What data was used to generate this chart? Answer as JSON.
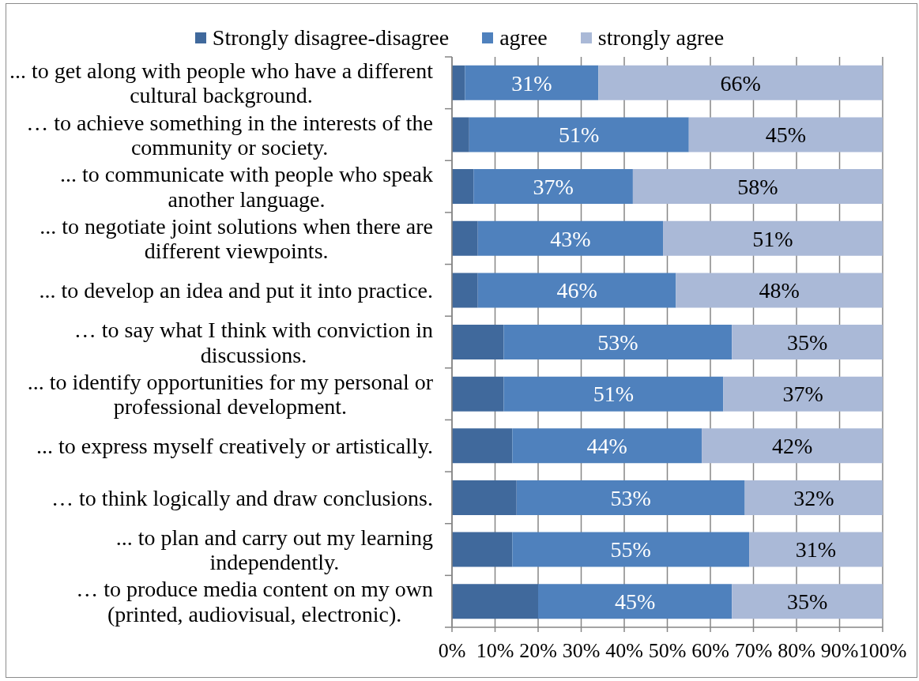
{
  "chart_data": {
    "type": "bar",
    "orientation": "horizontal",
    "stacked": true,
    "categories": [
      "... to get along with people who have a different\ncultural background.",
      "… to achieve something in the interests of the\ncommunity or society.",
      "... to communicate with people who speak\nanother language.",
      "... to negotiate joint solutions when there are\ndifferent viewpoints.",
      "... to develop an idea and put it into practice.",
      "… to say what I think with conviction in\ndiscussions.",
      "... to identify opportunities for my personal or\nprofessional development.",
      "... to express myself creatively or artistically.",
      "… to think logically and draw conclusions.",
      "... to plan and carry out my learning\nindependently.",
      "… to produce media content on my own\n(printed, audiovisual, electronic)."
    ],
    "series": [
      {
        "name": "Strongly disagree-disagree",
        "color": "#40699c",
        "values": [
          3,
          4,
          5,
          6,
          6,
          12,
          12,
          14,
          15,
          14,
          20
        ]
      },
      {
        "name": "agree",
        "color": "#4f81bd",
        "values": [
          31,
          51,
          37,
          43,
          46,
          53,
          51,
          44,
          53,
          55,
          45
        ],
        "value_labels": [
          "31%",
          "51%",
          "37%",
          "43%",
          "46%",
          "53%",
          "51%",
          "44%",
          "53%",
          "55%",
          "45%"
        ]
      },
      {
        "name": "strongly agree",
        "color": "#aab9d7",
        "values": [
          66,
          45,
          58,
          51,
          48,
          35,
          37,
          42,
          32,
          31,
          35
        ],
        "value_labels": [
          "66%",
          "45%",
          "58%",
          "51%",
          "48%",
          "35%",
          "37%",
          "42%",
          "32%",
          "31%",
          "35%"
        ]
      }
    ],
    "xlim": [
      0,
      100
    ],
    "xticks": [
      {
        "value": 0,
        "label": "0%"
      },
      {
        "value": 10,
        "label": "10%"
      },
      {
        "value": 20,
        "label": "20%"
      },
      {
        "value": 30,
        "label": "30%"
      },
      {
        "value": 40,
        "label": "40%"
      },
      {
        "value": 50,
        "label": "50%"
      },
      {
        "value": 60,
        "label": "60%"
      },
      {
        "value": 70,
        "label": "70%"
      },
      {
        "value": 80,
        "label": "80%"
      },
      {
        "value": 90,
        "label": "90%"
      },
      {
        "value": 100,
        "label": "100%"
      }
    ],
    "grid": "x",
    "legend": "top"
  }
}
